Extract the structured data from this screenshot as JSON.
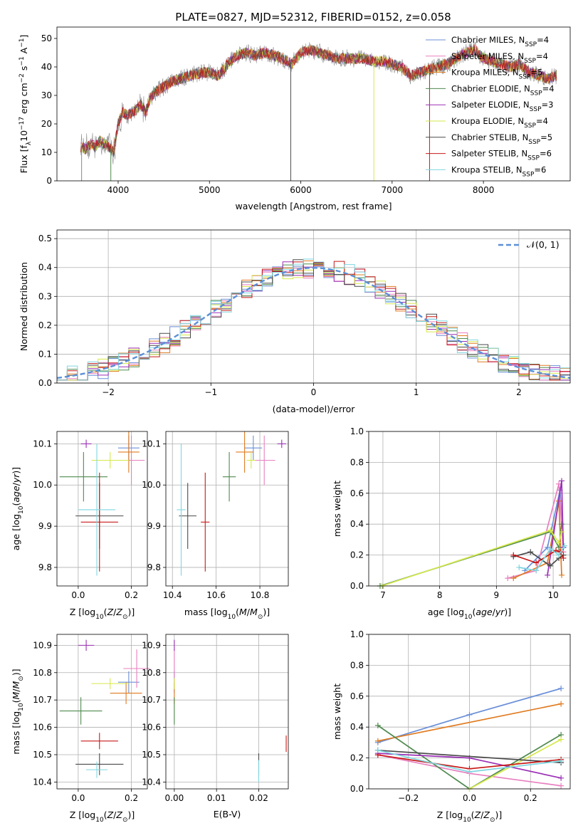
{
  "figure_title": "PLATE=0827, MJD=52312, FIBERID=0152, z=0.058",
  "models": [
    {
      "name": "Chabrier MILES",
      "nssp": "4",
      "color": "#6a8fd8"
    },
    {
      "name": "Salpeter MILES",
      "nssp": "4",
      "color": "#e87fbf"
    },
    {
      "name": "Kroupa MILES",
      "nssp": "5",
      "color": "#e07b20"
    },
    {
      "name": "Chabrier ELODIE",
      "nssp": "4",
      "color": "#4f8a4f"
    },
    {
      "name": "Salpeter ELODIE",
      "nssp": "3",
      "color": "#9b2fb5"
    },
    {
      "name": "Kroupa ELODIE",
      "nssp": "4",
      "color": "#d6e84a"
    },
    {
      "name": "Chabrier STELIB",
      "nssp": "5",
      "color": "#4a4a4a"
    },
    {
      "name": "Salpeter STELIB",
      "nssp": "6",
      "color": "#c81818"
    },
    {
      "name": "Kroupa STELIB",
      "nssp": "6",
      "color": "#7fd6e0"
    }
  ],
  "chart_data": [
    {
      "id": "spectrum",
      "type": "line",
      "xlabel": "wavelength [Angstrom, rest frame]",
      "ylabel": "Flux [f_λ10^-17 erg cm^-2 s^-1 A^-1]",
      "xlim": [
        3330,
        8950
      ],
      "ylim": [
        0,
        54
      ],
      "xticks": [
        "4000",
        "5000",
        "6000",
        "7000",
        "8000"
      ],
      "yticks": [
        "0",
        "10",
        "20",
        "30",
        "40",
        "50"
      ],
      "grid": false,
      "legend_position": "top-right",
      "observed_color": "#888888",
      "x": [
        3600,
        3650,
        3700,
        3750,
        3800,
        3850,
        3900,
        3950,
        4000,
        4050,
        4100,
        4150,
        4200,
        4250,
        4300,
        4350,
        4400,
        4450,
        4500,
        4600,
        4700,
        4800,
        4900,
        5000,
        5100,
        5200,
        5300,
        5400,
        5500,
        5600,
        5700,
        5800,
        5900,
        6000,
        6100,
        6200,
        6300,
        6400,
        6500,
        6600,
        6700,
        6800,
        6900,
        7000,
        7100,
        7200,
        7300,
        7400,
        7500,
        7600,
        7700,
        7800,
        7900,
        8000,
        8100,
        8200,
        8300,
        8400,
        8500,
        8600,
        8700,
        8800
      ],
      "y": [
        12,
        11,
        13,
        12,
        14,
        13,
        12,
        10,
        20,
        24,
        23,
        24,
        25,
        27,
        24,
        29,
        31,
        32,
        33,
        35,
        36,
        37,
        38,
        38,
        37,
        41,
        44,
        45,
        44,
        45,
        44,
        43,
        41,
        45,
        46,
        45,
        44,
        43,
        43,
        43,
        43,
        42,
        42,
        41,
        40,
        37,
        38,
        39,
        40,
        41,
        43,
        45,
        46,
        43,
        42,
        41,
        40,
        41,
        38,
        37,
        36,
        37
      ]
    },
    {
      "id": "residuals",
      "type": "histogram",
      "xlabel": "(data-model)/error",
      "ylabel": "Normed distribution",
      "xlim": [
        -2.5,
        2.5
      ],
      "ylim": [
        0,
        0.53
      ],
      "xticks": [
        "−2",
        "−1",
        "0",
        "1",
        "2"
      ],
      "yticks": [
        "0.0",
        "0.1",
        "0.2",
        "0.3",
        "0.4",
        "0.5"
      ],
      "grid": true,
      "legend_position": "top-right",
      "reference_label": "𝒩(0, 1)",
      "reference_color": "#5b8fd8",
      "bin_width": 0.1
    },
    {
      "id": "Z-age",
      "type": "scatter",
      "xlabel": "Z [log10(Z/Z⊙)]",
      "ylabel": "age  [log10(age/yr)]",
      "xlim": [
        -0.08,
        0.26
      ],
      "ylim": [
        9.755,
        10.13
      ],
      "xticks": [
        "0.0",
        "0.2"
      ],
      "yticks": [
        "9.8",
        "9.9",
        "10.0",
        "10.1"
      ],
      "grid": true,
      "points": [
        {
          "x": 0.19,
          "y": 10.09,
          "xerr": 0.04,
          "yerr": 0.03
        },
        {
          "x": 0.2,
          "y": 10.06,
          "xerr": 0.05,
          "yerr": 0.06
        },
        {
          "x": 0.19,
          "y": 10.08,
          "xerr": 0.04,
          "yerr": 0.05
        },
        {
          "x": 0.02,
          "y": 10.02,
          "xerr": 0.09,
          "yerr": 0.06
        },
        {
          "x": 0.03,
          "y": 10.1,
          "xerr": 0.02,
          "yerr": 0.01
        },
        {
          "x": 0.12,
          "y": 10.06,
          "xerr": 0.07,
          "yerr": 0.02
        },
        {
          "x": 0.08,
          "y": 9.925,
          "xerr": 0.09,
          "yerr": 0.08
        },
        {
          "x": 0.08,
          "y": 9.91,
          "xerr": 0.07,
          "yerr": 0.12
        },
        {
          "x": 0.07,
          "y": 9.94,
          "xerr": 0.07,
          "yerr": 0.16
        }
      ]
    },
    {
      "id": "mass-age",
      "type": "scatter",
      "xlabel": "mass [log10(M/M⊙)]",
      "ylabel": "",
      "xlim": [
        10.37,
        10.93
      ],
      "ylim": [
        9.755,
        10.13
      ],
      "xticks": [
        "10.4",
        "10.6",
        "10.8"
      ],
      "yticks": [
        "9.8",
        "9.9",
        "10.0",
        "10.1"
      ],
      "grid": true,
      "points": [
        {
          "x": 10.77,
          "y": 10.09,
          "xerr": 0.04,
          "yerr": 0.03
        },
        {
          "x": 10.82,
          "y": 10.06,
          "xerr": 0.05,
          "yerr": 0.06
        },
        {
          "x": 10.73,
          "y": 10.08,
          "xerr": 0.04,
          "yerr": 0.05
        },
        {
          "x": 10.66,
          "y": 10.02,
          "xerr": 0.03,
          "yerr": 0.06
        },
        {
          "x": 10.9,
          "y": 10.1,
          "xerr": 0.02,
          "yerr": 0.01
        },
        {
          "x": 10.76,
          "y": 10.06,
          "xerr": 0.02,
          "yerr": 0.02
        },
        {
          "x": 10.47,
          "y": 9.925,
          "xerr": 0.04,
          "yerr": 0.08
        },
        {
          "x": 10.55,
          "y": 9.91,
          "xerr": 0.02,
          "yerr": 0.12
        },
        {
          "x": 10.44,
          "y": 9.94,
          "xerr": 0.02,
          "yerr": 0.16
        }
      ]
    },
    {
      "id": "age-weight",
      "type": "line",
      "xlabel": "age  [log10(age/yr)]",
      "ylabel": "mass weight",
      "xlim": [
        6.75,
        10.3
      ],
      "ylim": [
        0,
        1
      ],
      "xticks": [
        "7",
        "8",
        "9",
        "10"
      ],
      "yticks": [
        "0.0",
        "0.2",
        "0.4",
        "0.6",
        "0.8",
        "1.0"
      ],
      "grid": true,
      "series": [
        {
          "x": [
            9.5,
            9.9,
            10.12,
            10.18
          ],
          "y": [
            0.1,
            0.25,
            0.62,
            0.25
          ]
        },
        {
          "x": [
            9.2,
            9.7,
            10.1,
            10.18
          ],
          "y": [
            0.05,
            0.1,
            0.66,
            0.22
          ]
        },
        {
          "x": [
            9.3,
            9.9,
            10.1,
            10.15
          ],
          "y": [
            0.05,
            0.15,
            0.55,
            0.07
          ]
        },
        {
          "x": [
            6.95,
            9.95,
            10.1,
            10.15
          ],
          "y": [
            0.0,
            0.35,
            0.25,
            0.4
          ]
        },
        {
          "x": [
            9.9,
            10.15,
            10.18
          ],
          "y": [
            0.07,
            0.68,
            0.25
          ]
        },
        {
          "x": [
            6.98,
            9.95,
            10.1,
            10.15
          ],
          "y": [
            0.0,
            0.36,
            0.28,
            0.35
          ]
        },
        {
          "x": [
            9.3,
            9.6,
            9.95,
            10.1,
            10.18
          ],
          "y": [
            0.19,
            0.22,
            0.13,
            0.18,
            0.2
          ]
        },
        {
          "x": [
            9.3,
            9.7,
            10.05,
            10.12,
            10.18
          ],
          "y": [
            0.2,
            0.15,
            0.23,
            0.22,
            0.18
          ]
        },
        {
          "x": [
            9.4,
            9.7,
            9.95,
            10.1,
            10.2
          ],
          "y": [
            0.12,
            0.1,
            0.24,
            0.2,
            0.26
          ]
        }
      ]
    },
    {
      "id": "Z-mass",
      "type": "scatter",
      "xlabel": "Z [log10(Z/Z⊙)]",
      "ylabel": "mass [log10(M/M⊙)]",
      "xlim": [
        -0.08,
        0.26
      ],
      "ylim": [
        10.375,
        10.94
      ],
      "xticks": [
        "0.0",
        "0.2"
      ],
      "yticks": [
        "10.4",
        "10.5",
        "10.6",
        "10.7",
        "10.8",
        "10.9"
      ],
      "grid": true,
      "points": [
        {
          "x": 0.19,
          "y": 10.765,
          "xerr": 0.04,
          "yerr": 0.04
        },
        {
          "x": 0.22,
          "y": 10.815,
          "xerr": 0.05,
          "yerr": 0.07
        },
        {
          "x": 0.18,
          "y": 10.725,
          "xerr": 0.06,
          "yerr": 0.04
        },
        {
          "x": 0.01,
          "y": 10.66,
          "xerr": 0.08,
          "yerr": 0.05
        },
        {
          "x": 0.03,
          "y": 10.9,
          "xerr": 0.03,
          "yerr": 0.02
        },
        {
          "x": 0.12,
          "y": 10.76,
          "xerr": 0.07,
          "yerr": 0.02
        },
        {
          "x": 0.08,
          "y": 10.465,
          "xerr": 0.09,
          "yerr": 0.04
        },
        {
          "x": 0.08,
          "y": 10.55,
          "xerr": 0.07,
          "yerr": 0.03
        },
        {
          "x": 0.07,
          "y": 10.445,
          "xerr": 0.04,
          "yerr": 0.03
        }
      ]
    },
    {
      "id": "ebv-mass",
      "type": "scatter",
      "xlabel": "E(B-V)",
      "ylabel": "",
      "xlim": [
        -0.002,
        0.027
      ],
      "ylim": [
        10.375,
        10.94
      ],
      "xticks": [
        "0.00",
        "0.01",
        "0.02"
      ],
      "yticks": [
        "10.4",
        "10.5",
        "10.6",
        "10.7",
        "10.8",
        "10.9"
      ],
      "grid": true,
      "points": [
        {
          "x": 0.0,
          "y": 10.765,
          "xerr": 0,
          "yerr": 0.04
        },
        {
          "x": 0.0,
          "y": 10.815,
          "xerr": 0,
          "yerr": 0.07
        },
        {
          "x": 0.0,
          "y": 10.725,
          "xerr": 0,
          "yerr": 0.04
        },
        {
          "x": 0.0,
          "y": 10.66,
          "xerr": 0,
          "yerr": 0.05
        },
        {
          "x": 0.0,
          "y": 10.9,
          "xerr": 0,
          "yerr": 0.02
        },
        {
          "x": 0.0,
          "y": 10.76,
          "xerr": 0,
          "yerr": 0.02
        },
        {
          "x": 0.02,
          "y": 10.465,
          "xerr": 0,
          "yerr": 0.04
        },
        {
          "x": 0.0265,
          "y": 10.54,
          "xerr": 0,
          "yerr": 0.03
        },
        {
          "x": 0.02,
          "y": 10.44,
          "xerr": 0,
          "yerr": 0.04
        }
      ]
    },
    {
      "id": "Z-weight",
      "type": "line",
      "xlabel": "Z [log10(Z/Z⊙)]",
      "ylabel": "mass weight",
      "xlim": [
        -0.33,
        0.33
      ],
      "ylim": [
        0,
        1
      ],
      "xticks": [
        "−0.2",
        "0.0",
        "0.2"
      ],
      "yticks": [
        "0.0",
        "0.2",
        "0.4",
        "0.6",
        "0.8",
        "1.0"
      ],
      "grid": true,
      "series": [
        {
          "x": [
            -0.3,
            0.0,
            0.3
          ],
          "y": [
            0.3,
            0.48,
            0.65
          ]
        },
        {
          "x": [
            -0.3,
            0.0,
            0.3
          ],
          "y": [
            0.22,
            0.1,
            0.02
          ]
        },
        {
          "x": [
            -0.3,
            0.3
          ],
          "y": [
            0.31,
            0.55
          ]
        },
        {
          "x": [
            -0.3,
            0.0,
            0.3
          ],
          "y": [
            0.41,
            0.0,
            0.35
          ]
        },
        {
          "x": [
            -0.3,
            0.0,
            0.3
          ],
          "y": [
            0.23,
            0.2,
            0.07
          ]
        },
        {
          "x": [
            0.0,
            0.3
          ],
          "y": [
            0.0,
            0.32
          ]
        },
        {
          "x": [
            -0.3,
            0.3
          ],
          "y": [
            0.25,
            0.17
          ]
        },
        {
          "x": [
            -0.3,
            0.0,
            0.3
          ],
          "y": [
            0.22,
            0.13,
            0.19
          ]
        },
        {
          "x": [
            -0.3,
            0.0,
            0.3
          ],
          "y": [
            0.25,
            0.11,
            0.18
          ]
        }
      ]
    }
  ]
}
